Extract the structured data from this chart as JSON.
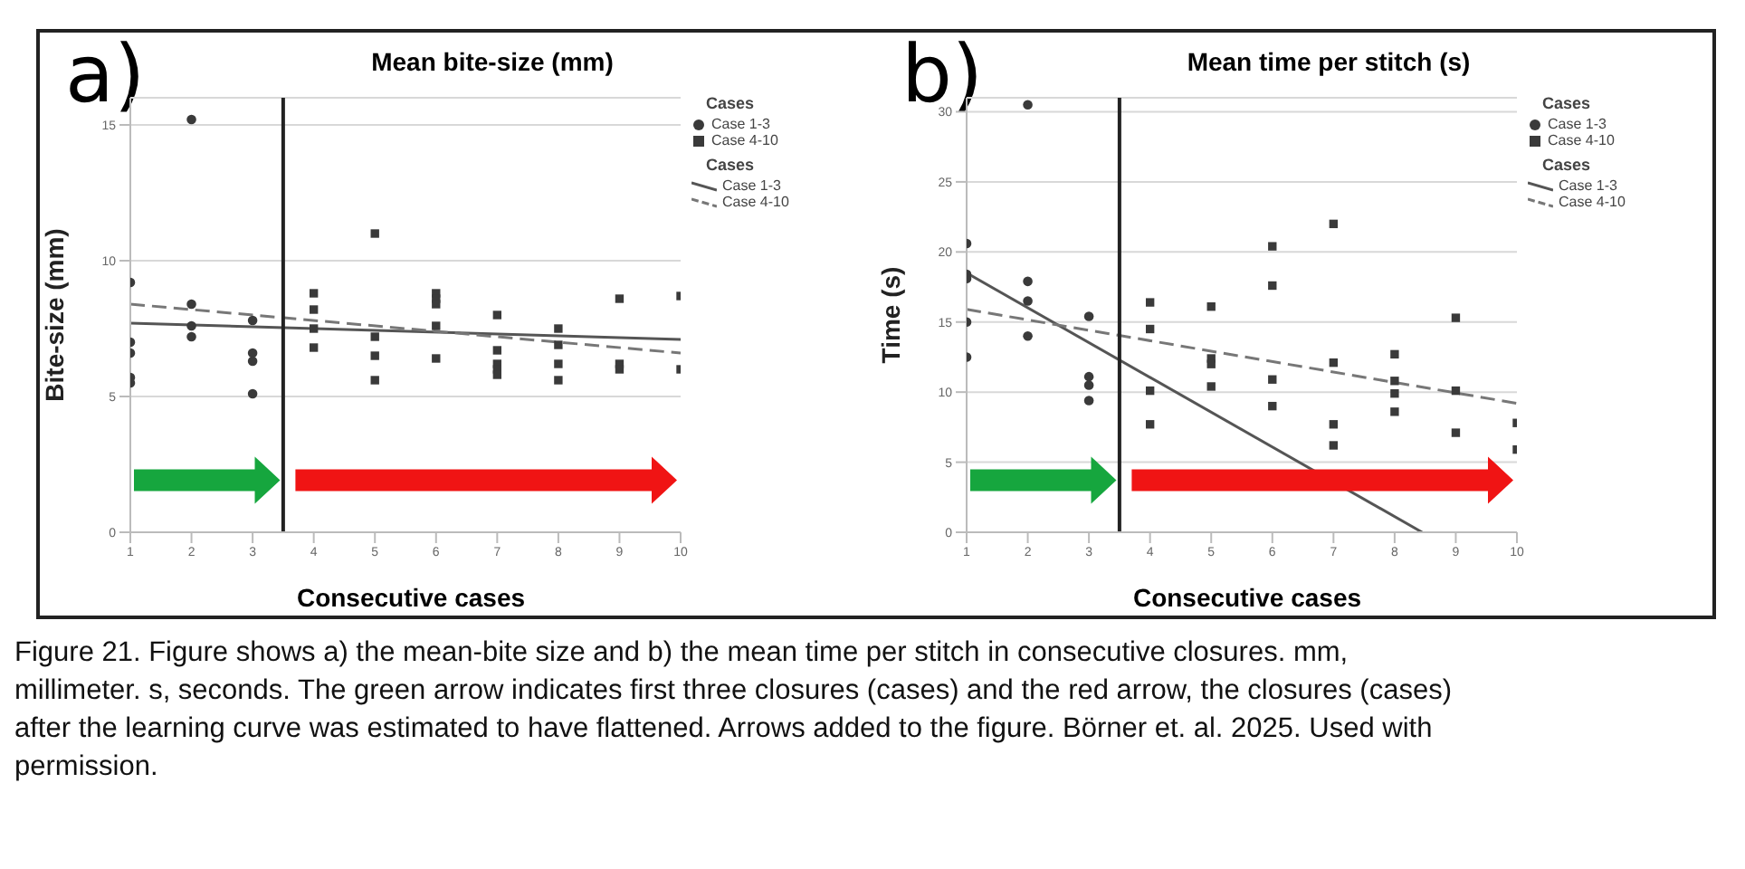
{
  "chart_data": [
    {
      "type": "scatter",
      "title": "Mean bite-size (mm)",
      "xlabel": "Consecutive cases",
      "ylabel": "Bite-size (mm)",
      "legend_title": "Cases",
      "xlim": [
        1,
        10
      ],
      "xticks": [
        1,
        2,
        3,
        4,
        5,
        6,
        7,
        8,
        9,
        10
      ],
      "ylim": [
        0,
        16
      ],
      "yticks": [
        0,
        5,
        10,
        15
      ],
      "grid": "y",
      "legend": "right",
      "ref_lines": [
        {
          "axis": "x",
          "value": 3.5,
          "color": "#222222"
        }
      ],
      "annotations": [
        "a)",
        "Figure 21.  Figure shows a) the mean-bite size and b) the mean time per stitch in consecutive closures. mm, millimeter. s, seconds. The green arrow indicates first three closures (cases) and the red arrow, the closures (cases) after the learning curve was estimated to have flattened. Arrows added to the figure. Börner et. al. 2025. Used with permission."
      ],
      "series": [
        {
          "name": "Case 1-3",
          "marker": "circle",
          "color": "#3a3a3a",
          "x": [
            1,
            1,
            1,
            1,
            1,
            2,
            2,
            2,
            2,
            3,
            3,
            3,
            3
          ],
          "values": [
            9.2,
            7.0,
            6.6,
            5.7,
            5.5,
            15.2,
            8.4,
            7.6,
            7.2,
            7.8,
            6.6,
            6.3,
            5.1
          ]
        },
        {
          "name": "Case 4-10",
          "marker": "square",
          "color": "#3a3a3a",
          "x": [
            4,
            4,
            4,
            4,
            5,
            5,
            5,
            5,
            6,
            6,
            6,
            6,
            6,
            7,
            7,
            7,
            7,
            7,
            8,
            8,
            8,
            8,
            9,
            9,
            9,
            10,
            10
          ],
          "values": [
            8.8,
            8.2,
            7.5,
            6.8,
            11.0,
            7.2,
            6.5,
            5.6,
            8.8,
            8.6,
            8.4,
            7.6,
            6.4,
            8.0,
            6.7,
            6.2,
            6.0,
            5.8,
            7.5,
            6.9,
            6.2,
            5.6,
            8.6,
            6.2,
            6.0,
            8.7,
            6.0
          ]
        },
        {
          "type": "line",
          "name": "Case 1-3",
          "line_style": "solid",
          "color": "#555555",
          "x": [
            1,
            10
          ],
          "values": [
            7.7,
            7.1
          ]
        },
        {
          "type": "line",
          "name": "Case 4-10",
          "line_style": "dashed",
          "color": "#777777",
          "x": [
            1,
            10
          ],
          "values": [
            8.4,
            6.6
          ]
        }
      ]
    },
    {
      "type": "scatter",
      "title": "Mean time per stitch (s)",
      "xlabel": "Consecutive cases",
      "ylabel": "Time (s)",
      "legend_title": "Cases",
      "xlim": [
        1,
        10
      ],
      "xticks": [
        1,
        2,
        3,
        4,
        5,
        6,
        7,
        8,
        9,
        10
      ],
      "ylim": [
        0,
        31
      ],
      "yticks": [
        0,
        5,
        10,
        15,
        20,
        25,
        30
      ],
      "grid": "y",
      "legend": "right",
      "ref_lines": [
        {
          "axis": "x",
          "value": 3.5,
          "color": "#222222"
        }
      ],
      "annotations": [
        "b)"
      ],
      "series": [
        {
          "name": "Case 1-3",
          "marker": "circle",
          "color": "#3a3a3a",
          "x": [
            1,
            1,
            1,
            1,
            1,
            2,
            2,
            2,
            2,
            3,
            3,
            3,
            3
          ],
          "values": [
            20.6,
            18.4,
            18.1,
            15.0,
            12.5,
            30.5,
            17.9,
            16.5,
            14.0,
            15.4,
            11.1,
            10.5,
            9.4
          ]
        },
        {
          "name": "Case 4-10",
          "marker": "square",
          "color": "#3a3a3a",
          "x": [
            4,
            4,
            4,
            4,
            5,
            5,
            5,
            5,
            6,
            6,
            6,
            6,
            7,
            7,
            7,
            7,
            8,
            8,
            8,
            8,
            9,
            9,
            9,
            10,
            10
          ],
          "values": [
            16.4,
            14.5,
            10.1,
            7.7,
            16.1,
            12.4,
            12.0,
            10.4,
            20.4,
            17.6,
            10.9,
            9.0,
            22.0,
            12.1,
            7.7,
            6.2,
            12.7,
            10.8,
            9.9,
            8.6,
            15.3,
            10.1,
            7.1,
            7.8,
            5.9
          ]
        },
        {
          "type": "line",
          "name": "Case 1-3",
          "line_style": "solid",
          "color": "#555555",
          "x": [
            1,
            8.45
          ],
          "values": [
            18.5,
            0
          ]
        },
        {
          "type": "line",
          "name": "Case 4-10",
          "line_style": "dashed",
          "color": "#777777",
          "x": [
            1,
            10
          ],
          "values": [
            15.9,
            9.2
          ]
        }
      ]
    }
  ]
}
